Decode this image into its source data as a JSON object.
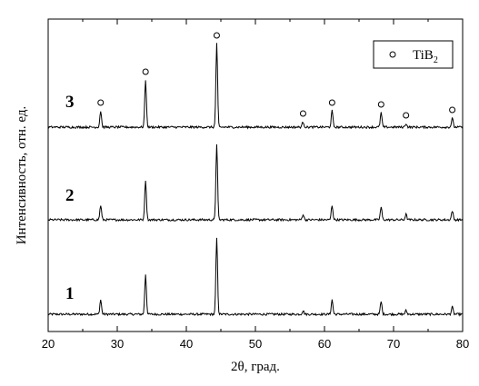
{
  "chart_data": {
    "type": "line",
    "title": "",
    "xlabel": "2θ, град.",
    "ylabel": "Интенсивность, отн. ед.",
    "xlim": [
      20,
      80
    ],
    "x_ticks": [
      20,
      30,
      40,
      50,
      60,
      70,
      80
    ],
    "y_ticks_shown": false,
    "legend": {
      "placement": "top-right",
      "marker": "open-circle",
      "text_main": "TiB",
      "text_sub": "2"
    },
    "peak_markers": {
      "phase": "TiB2",
      "series": "3",
      "positions": [
        27.6,
        34.1,
        44.4,
        56.9,
        61.1,
        68.2,
        71.8,
        78.5
      ]
    },
    "series": [
      {
        "name": "1",
        "baseline": 0.0,
        "peaks": [
          {
            "x": 27.6,
            "h": 0.08
          },
          {
            "x": 34.1,
            "h": 0.22
          },
          {
            "x": 44.4,
            "h": 0.42
          },
          {
            "x": 56.9,
            "h": 0.02
          },
          {
            "x": 61.1,
            "h": 0.08
          },
          {
            "x": 68.2,
            "h": 0.07
          },
          {
            "x": 71.8,
            "h": 0.02
          },
          {
            "x": 78.5,
            "h": 0.04
          }
        ]
      },
      {
        "name": "2",
        "baseline": 0.52,
        "peaks": [
          {
            "x": 27.6,
            "h": 0.08
          },
          {
            "x": 34.1,
            "h": 0.22
          },
          {
            "x": 44.4,
            "h": 0.42
          },
          {
            "x": 56.9,
            "h": 0.03
          },
          {
            "x": 61.1,
            "h": 0.08
          },
          {
            "x": 68.2,
            "h": 0.07
          },
          {
            "x": 71.8,
            "h": 0.03
          },
          {
            "x": 78.5,
            "h": 0.05
          }
        ]
      },
      {
        "name": "3",
        "baseline": 1.03,
        "peaks": [
          {
            "x": 27.6,
            "h": 0.09
          },
          {
            "x": 34.1,
            "h": 0.26
          },
          {
            "x": 44.4,
            "h": 0.46
          },
          {
            "x": 56.9,
            "h": 0.03
          },
          {
            "x": 61.1,
            "h": 0.09
          },
          {
            "x": 68.2,
            "h": 0.08
          },
          {
            "x": 71.8,
            "h": 0.02
          },
          {
            "x": 78.5,
            "h": 0.05
          }
        ]
      }
    ],
    "colors": {
      "line": "#000000",
      "background": "#ffffff"
    }
  }
}
